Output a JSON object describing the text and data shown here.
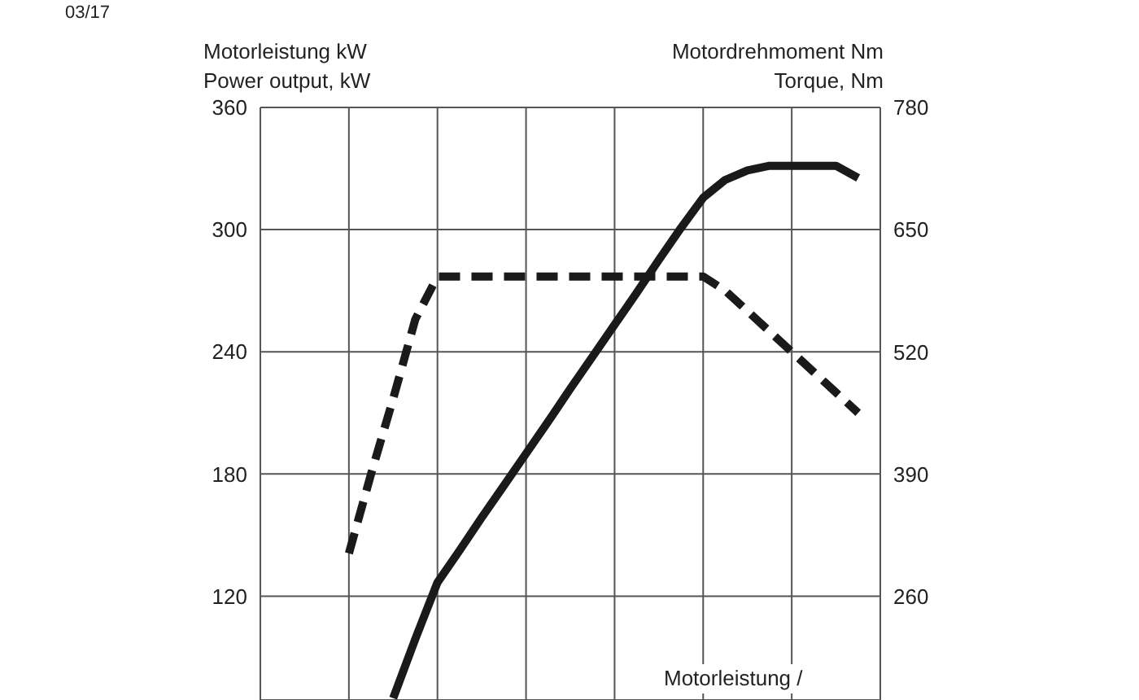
{
  "chart_data": {
    "type": "line",
    "ylabel": "Motorleistung kW\nPower output, kW",
    "y2label": "Motordrehmoment Nm\nTorque, Nm",
    "annotations": [
      "03/17",
      "Motorleistung /"
    ],
    "categories": [
      null,
      null,
      null,
      null,
      null,
      null,
      null,
      null,
      null,
      null,
      null,
      null,
      null,
      null,
      null,
      null,
      null,
      null,
      null,
      null,
      null,
      null,
      null,
      null,
      null,
      null,
      null,
      null,
      null
    ],
    "ylim": [
      69,
      360
    ],
    "yticks": [
      120,
      180,
      240,
      300,
      360
    ],
    "y2lim": [
      150,
      780
    ],
    "y2ticks": [
      260,
      390,
      520,
      650,
      780
    ],
    "tick_labels": "y",
    "grid": true,
    "legend": false,
    "marker": "none",
    "series": [
      {
        "color": "#1a1a1a",
        "line_style": "dashed",
        "values": [
          null,
          null,
          null,
          null,
          141,
          180,
          217,
          256,
          277,
          277,
          277,
          277,
          277,
          277,
          277,
          277,
          277,
          277,
          277,
          277,
          277,
          270,
          260,
          250,
          240,
          230,
          220,
          210,
          null
        ]
      },
      {
        "color": "#1a1a1a",
        "line_style": "solid",
        "axis": "y2",
        "values": [
          null,
          null,
          null,
          null,
          null,
          null,
          152,
          215,
          275,
          309,
          344,
          378,
          412,
          446,
          481,
          515,
          549,
          583,
          618,
          652,
          684,
          703,
          713,
          718,
          718,
          718,
          718,
          705,
          null
        ]
      }
    ]
  }
}
